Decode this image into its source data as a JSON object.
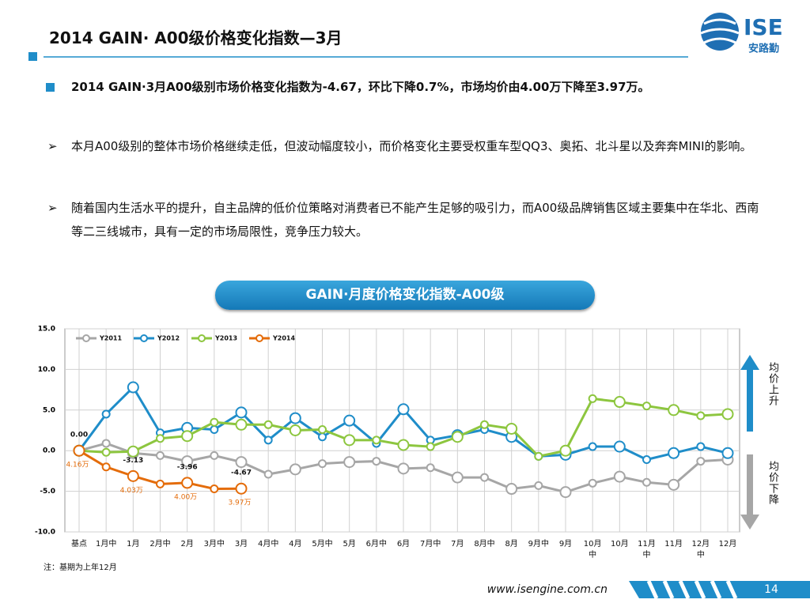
{
  "header": {
    "title": "2014 GAIN· A00级价格变化指数—3月",
    "logo_name": "ISE",
    "logo_sub": "安路勤"
  },
  "bullets": [
    "2014 GAIN·3月A00级别市场价格变化指数为-4.67，环比下降0.7%，市场均价由4.00万下降至3.97万。",
    "本月A00级别的整体市场价格继续走低，但波动幅度较小，而价格变化主要受权重车型QQ3、奥拓、北斗星以及奔奔MINI的影响。",
    "随着国内生活水平的提升，自主品牌的低价位策略对消费者已不能产生足够的吸引力，而A00级品牌销售区域主要集中在华北、西南等二三线城市，具有一定的市场局限性，竞争压力较大。"
  ],
  "chart_data": {
    "type": "line",
    "title": "GAIN·月度价格变化指数-A00级",
    "categories": [
      "基点",
      "1月中",
      "1月",
      "2月中",
      "2月",
      "3月中",
      "3月",
      "4月中",
      "4月",
      "5月中",
      "5月",
      "6月中",
      "6月",
      "7月中",
      "7月",
      "8月中",
      "8月",
      "9月中",
      "9月",
      "10月中",
      "10月",
      "11月中",
      "11月",
      "12月中",
      "12月"
    ],
    "ylim": [
      -10,
      15
    ],
    "yticks": [
      {
        "value": 15,
        "label": "15.0"
      },
      {
        "value": 10,
        "label": "10.0"
      },
      {
        "value": 5,
        "label": "5.0"
      },
      {
        "value": 0,
        "label": "0.0"
      },
      {
        "value": -5,
        "label": "-5.0"
      },
      {
        "value": -10,
        "label": "-10.0"
      }
    ],
    "grid": true,
    "legend": "top-left",
    "series": [
      {
        "name": "Y2011",
        "color": "#a6a6a6",
        "values": [
          0,
          0.9,
          -0.3,
          -0.6,
          -1.3,
          -0.6,
          -1.4,
          -2.9,
          -2.3,
          -1.6,
          -1.4,
          -1.3,
          -2.2,
          -2.1,
          -3.3,
          -3.3,
          -4.7,
          -4.3,
          -5.1,
          -4.0,
          -3.2,
          -3.9,
          -4.2,
          -1.3,
          -1.1
        ]
      },
      {
        "name": "Y2012",
        "color": "#1f8dc9",
        "values": [
          0,
          4.5,
          7.8,
          2.2,
          2.8,
          2.6,
          4.7,
          1.3,
          4.0,
          1.7,
          3.7,
          0.9,
          5.1,
          1.3,
          1.9,
          2.6,
          1.7,
          -0.7,
          -0.5,
          0.5,
          0.5,
          -1.1,
          -0.3,
          0.5,
          -0.3
        ]
      },
      {
        "name": "Y2013",
        "color": "#8dc63f",
        "values": [
          0,
          -0.2,
          -0.1,
          1.5,
          1.8,
          3.5,
          3.2,
          3.2,
          2.5,
          2.6,
          1.3,
          1.3,
          0.7,
          0.5,
          1.7,
          3.2,
          2.7,
          -0.7,
          0.0,
          6.4,
          6.0,
          5.5,
          5.0,
          4.3,
          4.5
        ]
      },
      {
        "name": "Y2014",
        "color": "#e46c0a",
        "values": [
          0,
          -2.0,
          -3.13,
          -4.1,
          -3.96,
          -4.7,
          -4.67,
          null,
          null,
          null,
          null,
          null,
          null,
          null,
          null,
          null,
          null,
          null,
          null,
          null,
          null,
          null,
          null,
          null,
          null
        ],
        "value_labels": [
          "0.00",
          null,
          "-3.13",
          null,
          "-3.96",
          null,
          "-4.67",
          null,
          null,
          null,
          null,
          null,
          null,
          null,
          null,
          null,
          null,
          null,
          null,
          null,
          null,
          null,
          null,
          null,
          null
        ],
        "price_labels": [
          "4.16万",
          null,
          "4.03万",
          null,
          "4.00万",
          null,
          "3.97万",
          null,
          null,
          null,
          null,
          null,
          null,
          null,
          null,
          null,
          null,
          null,
          null,
          null,
          null,
          null,
          null,
          null,
          null
        ]
      }
    ],
    "up_label": "均价上升",
    "down_label": "均价下降",
    "note": "注：基期为上年12月"
  },
  "footer": {
    "url": "www.isengine.com.cn",
    "page": "14"
  }
}
